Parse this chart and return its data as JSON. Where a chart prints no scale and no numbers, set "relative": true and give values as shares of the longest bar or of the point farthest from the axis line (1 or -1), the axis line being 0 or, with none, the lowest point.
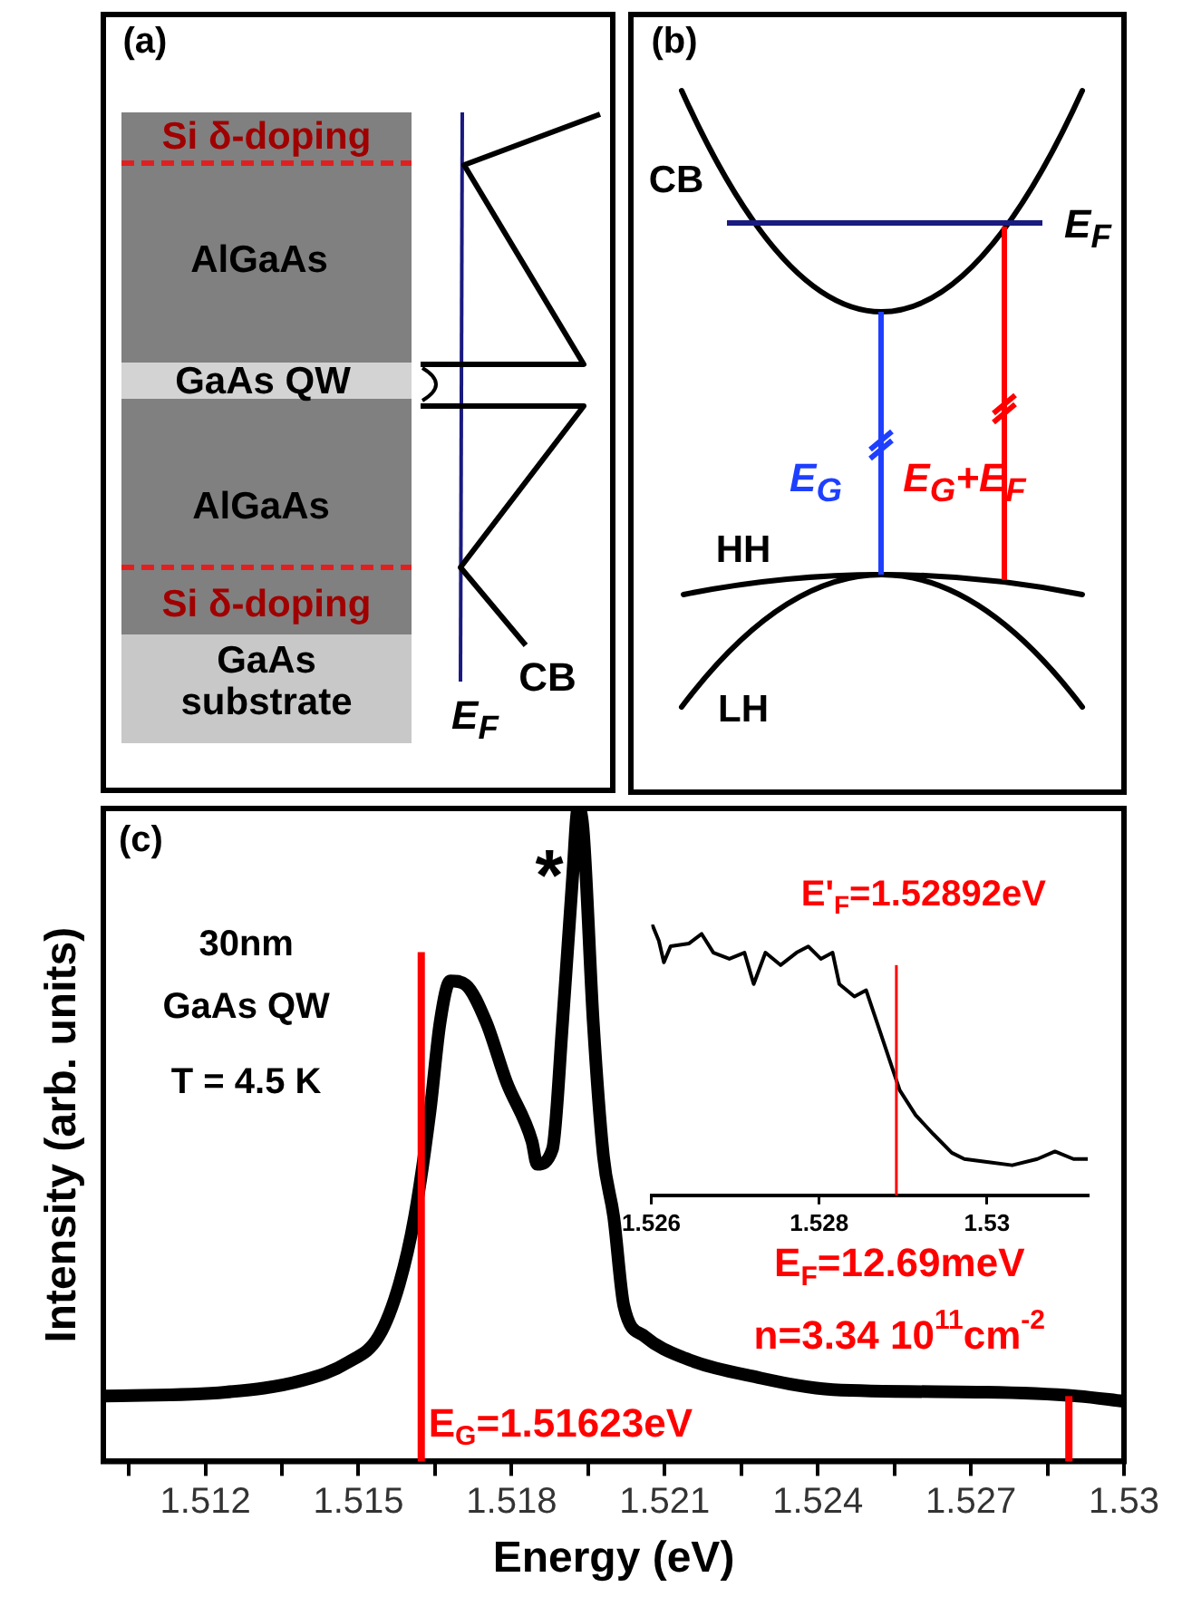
{
  "chart_data": [
    {
      "type": "other",
      "annotations": [
        "(a)",
        "Si δ-doping",
        "AlGaAs",
        "GaAs QW",
        "AlGaAs",
        "Si δ-doping",
        "GaAs substrate",
        "E$_{F}$",
        "CB"
      ]
    },
    {
      "type": "other",
      "annotations": [
        "(b)",
        "CB",
        "E$_{F}$",
        "E$_{G}$",
        "E$_{G}$+E$_{F}$",
        "HH",
        "LH"
      ]
    },
    {
      "type": "line",
      "xlabel": "Energy (eV)",
      "ylabel": "Intensity (arb. units)",
      "relative": true,
      "xlim": [
        1.51,
        1.53
      ],
      "xticks": [
        {
          "value": 1.5105,
          "label": null
        },
        1.512,
        {
          "value": 1.5135,
          "label": null
        },
        1.515,
        {
          "value": 1.5165,
          "label": null
        },
        1.518,
        {
          "value": 1.5195,
          "label": null
        },
        1.521,
        {
          "value": 1.5225,
          "label": null
        },
        1.524,
        {
          "value": 1.5255,
          "label": null
        },
        1.527,
        {
          "value": 1.5285,
          "label": null
        },
        1.53
      ],
      "series": [
        {
          "color": "#000000",
          "x": [
            1.51002,
            1.5124,
            1.5139,
            1.5148,
            1.5154,
            1.5158,
            1.5161,
            1.5164,
            1.5166,
            1.5168,
            1.5171,
            1.5175,
            1.5179,
            1.5184,
            1.5185,
            1.5188,
            1.519,
            1.5192,
            1.5193,
            1.5194,
            1.5196,
            1.5198,
            1.52,
            1.5202,
            1.5206,
            1.5214,
            1.5228,
            1.5243,
            1.5273,
            1.5291,
            1.53
          ],
          "values": [
            0.1,
            0.106,
            0.124,
            0.152,
            0.192,
            0.272,
            0.375,
            0.535,
            0.673,
            0.736,
            0.73,
            0.673,
            0.581,
            0.49,
            0.455,
            0.478,
            0.673,
            0.9,
            1.0,
            0.97,
            0.673,
            0.467,
            0.375,
            0.238,
            0.192,
            0.158,
            0.129,
            0.11,
            0.106,
            0.1,
            0.092
          ]
        }
      ],
      "ref_lines": [
        {
          "axis": "x",
          "value": 1.51623,
          "label": "E$_{G}$=1.51623eV",
          "color": "#ff0000"
        },
        {
          "axis": "x",
          "value": 1.52892,
          "color": "#ff0000"
        }
      ],
      "annotations": [
        "(c)",
        "*",
        "30nm",
        "GaAs QW",
        "T = 4.5 K",
        "E$_{F}$=12.69meV",
        "n=3.34 10$^{11}$cm$^{-2}$"
      ]
    },
    {
      "type": "line",
      "relative": true,
      "xlim": [
        1.526,
        1.5312
      ],
      "xticks": [
        1.526,
        1.528,
        1.53
      ],
      "series": [
        {
          "color": "#000000",
          "x": [
            1.52601,
            1.52609,
            1.52615,
            1.52623,
            1.52645,
            1.5266,
            1.52674,
            1.52693,
            1.52711,
            1.52722,
            1.52736,
            1.52754,
            1.52773,
            1.52787,
            1.52802,
            1.52816,
            1.52824,
            1.52842,
            1.52856,
            1.52871,
            1.52886,
            1.52896,
            1.52915,
            1.52936,
            1.52958,
            1.52973,
            1.53002,
            1.5303,
            1.5306,
            1.53081,
            1.53103,
            1.5312
          ],
          "values": [
            1.0,
            0.94,
            0.86,
            0.92,
            0.93,
            0.965,
            0.896,
            0.873,
            0.896,
            0.78,
            0.896,
            0.85,
            0.896,
            0.919,
            0.873,
            0.896,
            0.78,
            0.734,
            0.757,
            0.619,
            0.48,
            0.388,
            0.296,
            0.226,
            0.157,
            0.134,
            0.122,
            0.111,
            0.134,
            0.162,
            0.134,
            0.134
          ]
        }
      ],
      "ref_lines": [
        {
          "axis": "x",
          "value": 1.52892,
          "label": "E'$_{F}$=1.52892eV",
          "color": "#ff0000"
        }
      ]
    }
  ]
}
